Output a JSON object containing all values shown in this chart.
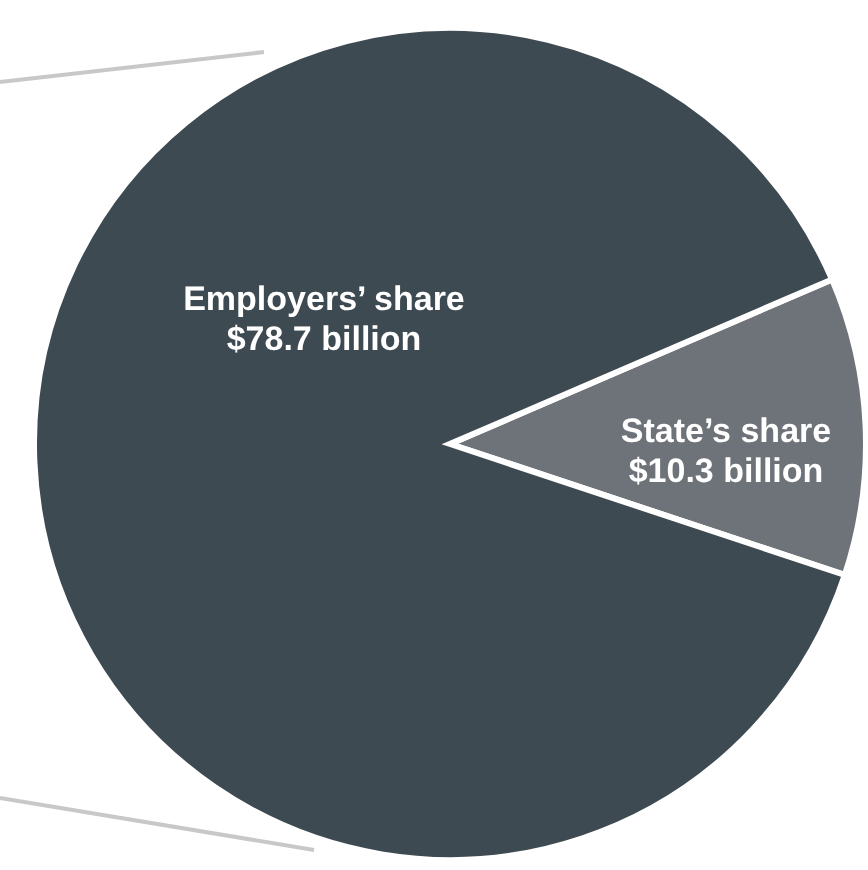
{
  "chart_data": {
    "type": "pie",
    "categories": [
      "State’s share",
      "Employers’ share"
    ],
    "values": [
      10.3,
      78.7
    ],
    "colors": [
      "#6e7379",
      "#3e4a52"
    ],
    "value_labels": [
      "$10.3 billion",
      "$78.7 billion"
    ]
  }
}
